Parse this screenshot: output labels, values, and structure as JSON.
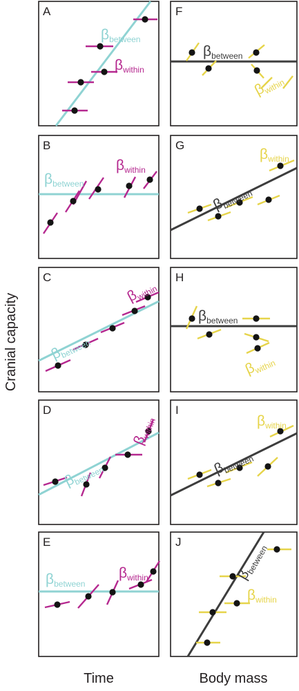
{
  "axes": {
    "y_label": "Cranial capacity",
    "x_label_left": "Time",
    "x_label_right": "Body mass"
  },
  "symbols": {
    "beta": "β",
    "between": "between",
    "within": "within"
  },
  "colors": {
    "left_between_line": "#8fd3d3",
    "left_within_segments": "#b5288f",
    "right_between_line": "#3d3d3d",
    "right_within_segments": "#e6d44a",
    "points": "#141414",
    "frame": "#231f20"
  },
  "panels": [
    {
      "letter": "A"
    },
    {
      "letter": "F"
    },
    {
      "letter": "B"
    },
    {
      "letter": "G"
    },
    {
      "letter": "C"
    },
    {
      "letter": "H"
    },
    {
      "letter": "D"
    },
    {
      "letter": "I"
    },
    {
      "letter": "E"
    },
    {
      "letter": "J"
    }
  ]
}
